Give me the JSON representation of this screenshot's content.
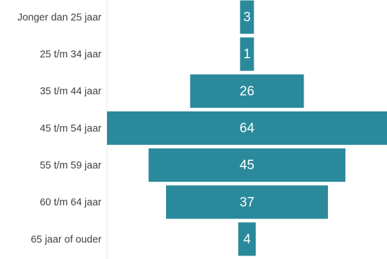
{
  "chart_data": {
    "type": "bar",
    "orientation": "horizontal",
    "alignment": "centered",
    "title": "",
    "xlabel": "",
    "ylabel": "",
    "grid": false,
    "legend": "none",
    "bar_color": "#2a8a9c",
    "categories": [
      "Jonger dan 25 jaar",
      "25 t/m 34 jaar",
      "35 t/m 44 jaar",
      "45 t/m 54 jaar",
      "55 t/m 59 jaar",
      "60 t/m 64 jaar",
      "65 jaar of ouder"
    ],
    "values": [
      3,
      1,
      26,
      64,
      45,
      37,
      4
    ],
    "value_labels": [
      "3",
      "1",
      "26",
      "64",
      "45",
      "37",
      "4"
    ],
    "xlim": [
      0,
      64
    ]
  }
}
